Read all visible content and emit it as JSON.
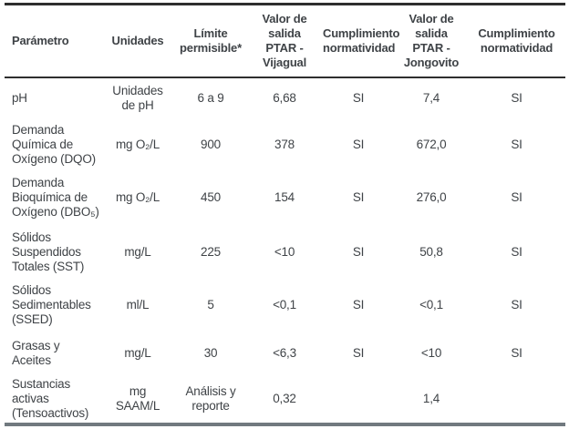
{
  "table": {
    "title": "PTAR effluent compliance table",
    "colors": {
      "text": "#3f4347",
      "rule_dark": "#2e2e2e",
      "rule_bottom": "#71797f"
    },
    "columns": [
      "Parámetro",
      "Unidades",
      "Límite\npermisible*",
      "Valor de\nsalida\nPTAR -\nVijagual",
      "Cumplimiento\nnormatividad",
      "Valor de\nsalida\nPTAR -\nJongovito",
      "Cumplimiento\nnormatividad"
    ],
    "rows": [
      [
        "pH",
        "Unidades\nde pH",
        "6 a 9",
        "6,68",
        "SI",
        "7,4",
        "SI"
      ],
      [
        "Demanda\nQuímica de\nOxígeno (DQO)",
        "mg O₂/L",
        "900",
        "378",
        "SI",
        "672,0",
        "SI"
      ],
      [
        "Demanda\nBioquímica de\nOxígeno (DBO₅)",
        "mg O₂/L",
        "450",
        "154",
        "SI",
        "276,0",
        "SI"
      ],
      [
        "Sólidos\nSuspendidos\nTotales (SST)",
        "mg/L",
        "225",
        "<10",
        "SI",
        "50,8",
        "SI"
      ],
      [
        "Sólidos\nSedimentables\n(SSED)",
        "ml/L",
        "5",
        "<0,1",
        "SI",
        "<0,1",
        "SI"
      ],
      [
        "Grasas y\nAceites",
        "mg/L",
        "30",
        "<6,3",
        "SI",
        "<10",
        "SI"
      ],
      [
        "Sustancias\nactivas\n(Tensoactivos)",
        "mg\nSAAM/L",
        "Análisis y\nreporte",
        "0,32",
        "",
        "1,4",
        ""
      ]
    ]
  }
}
